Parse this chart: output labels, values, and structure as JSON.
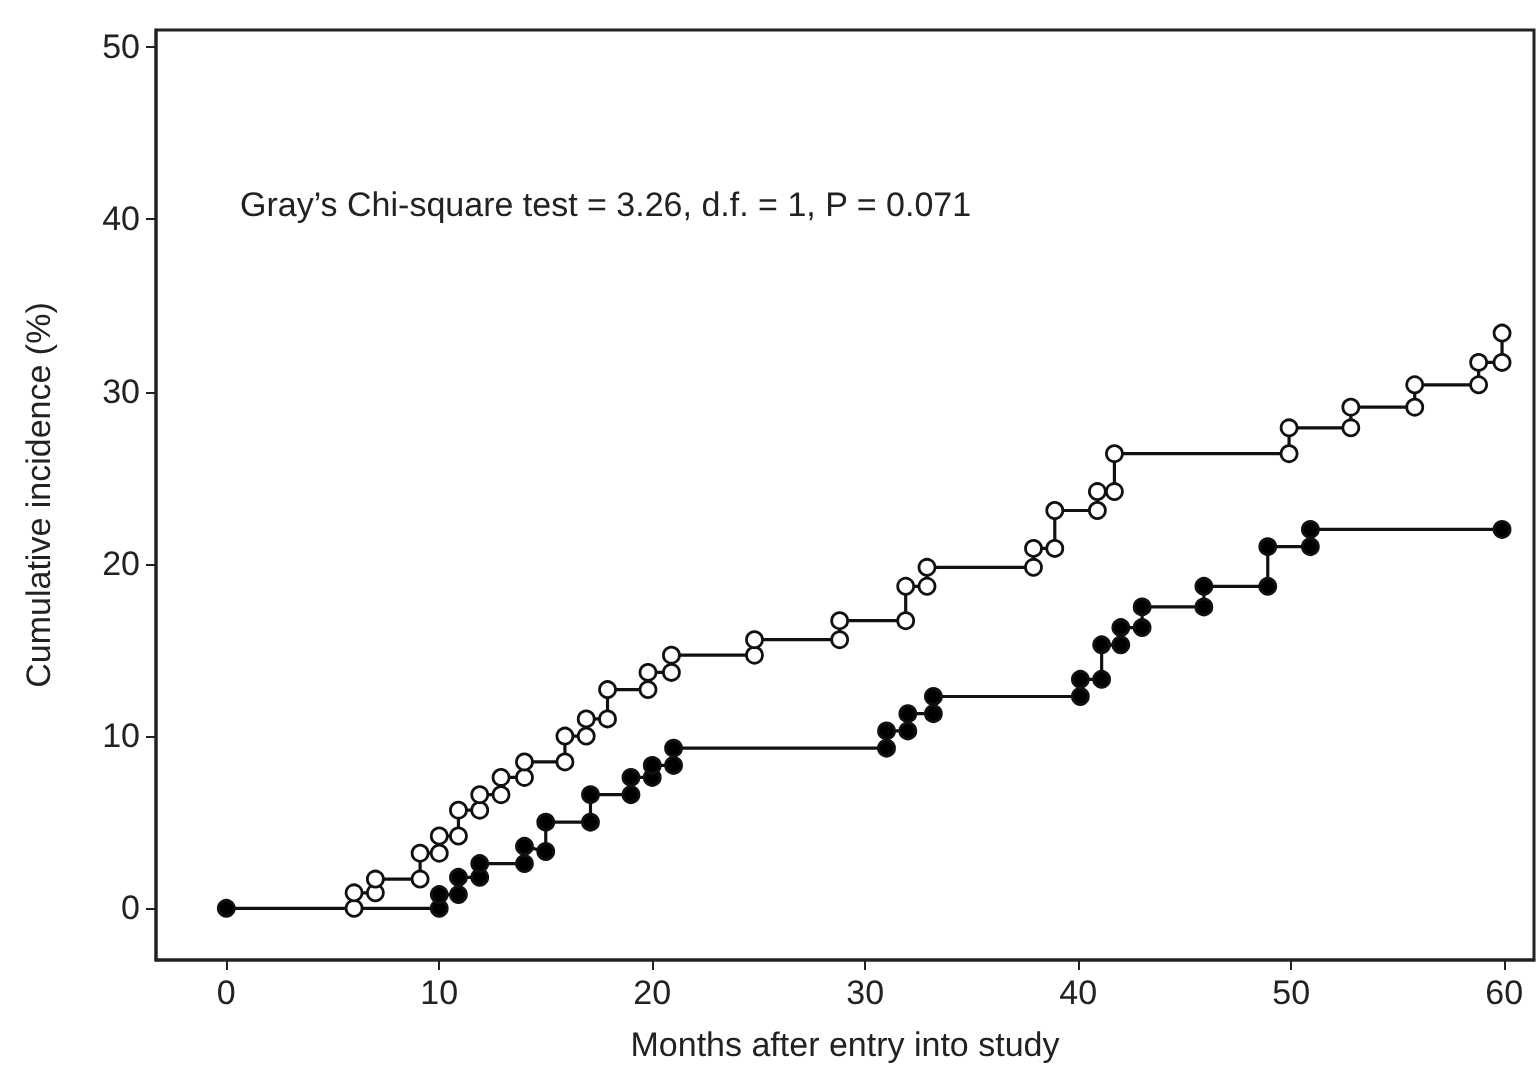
{
  "chart_data": {
    "type": "step",
    "xlabel": "Months after entry into study",
    "ylabel": "Cumulative incidence (%)",
    "annotations": [
      "Gray’s Chi-square test = 3.26, d.f. = 1, P = 0.071"
    ],
    "xlim": [
      -3.3,
      61.4
    ],
    "ylim": [
      -3,
      51
    ],
    "xticks": [
      0,
      10,
      20,
      30,
      40,
      50,
      60
    ],
    "yticks": [
      0,
      10,
      20,
      30,
      40,
      50
    ],
    "grid": false,
    "marker": "circle",
    "line_style": "solid",
    "series": [
      {
        "color": "#ffffff",
        "x": [
          6,
          6,
          7,
          7,
          9.1,
          9.1,
          10,
          10,
          10.9,
          10.9,
          11.9,
          11.9,
          12.9,
          12.9,
          14,
          14,
          15.9,
          15.9,
          16.9,
          16.9,
          17.9,
          17.9,
          19.8,
          19.8,
          20.9,
          20.9,
          24.8,
          24.8,
          28.8,
          28.8,
          31.9,
          31.9,
          32.9,
          32.9,
          37.9,
          37.9,
          38.9,
          38.9,
          40.9,
          40.9,
          41.7,
          41.7,
          49.9,
          49.9,
          52.8,
          52.8,
          55.8,
          55.8,
          58.8,
          58.8,
          59.9,
          59.9
        ],
        "values": [
          0,
          0.9,
          0.9,
          1.7,
          1.7,
          3.2,
          3.2,
          4.2,
          4.2,
          5.7,
          5.7,
          6.6,
          6.6,
          7.6,
          7.6,
          8.5,
          8.5,
          10,
          10,
          11,
          11,
          12.7,
          12.7,
          13.7,
          13.7,
          14.7,
          14.7,
          15.6,
          15.6,
          16.7,
          16.7,
          18.7,
          18.7,
          19.8,
          19.8,
          20.9,
          20.9,
          23.1,
          23.1,
          24.2,
          24.2,
          26.4,
          26.4,
          27.9,
          27.9,
          29.1,
          29.1,
          30.4,
          30.4,
          31.7,
          31.7,
          33.4
        ]
      },
      {
        "color": "#000000",
        "x": [
          0,
          10,
          10,
          10.9,
          10.9,
          11.9,
          11.9,
          14,
          14,
          15,
          15,
          17.1,
          17.1,
          19,
          19,
          20,
          20,
          21,
          21,
          31,
          31,
          32,
          32,
          33.2,
          33.2,
          40.1,
          40.1,
          41.1,
          41.1,
          42,
          42,
          43,
          43,
          45.9,
          45.9,
          48.9,
          48.9,
          50.9,
          50.9,
          59.9
        ],
        "values": [
          0,
          0,
          0.8,
          0.8,
          1.8,
          1.8,
          2.6,
          2.6,
          3.6,
          3.3,
          5,
          5,
          6.6,
          6.6,
          7.6,
          7.6,
          8.3,
          8.3,
          9.3,
          9.3,
          10.3,
          10.3,
          11.3,
          11.3,
          12.3,
          12.3,
          13.3,
          13.3,
          15.3,
          15.3,
          16.3,
          16.3,
          17.5,
          17.5,
          18.7,
          18.7,
          21,
          21,
          22,
          22
        ]
      }
    ]
  }
}
